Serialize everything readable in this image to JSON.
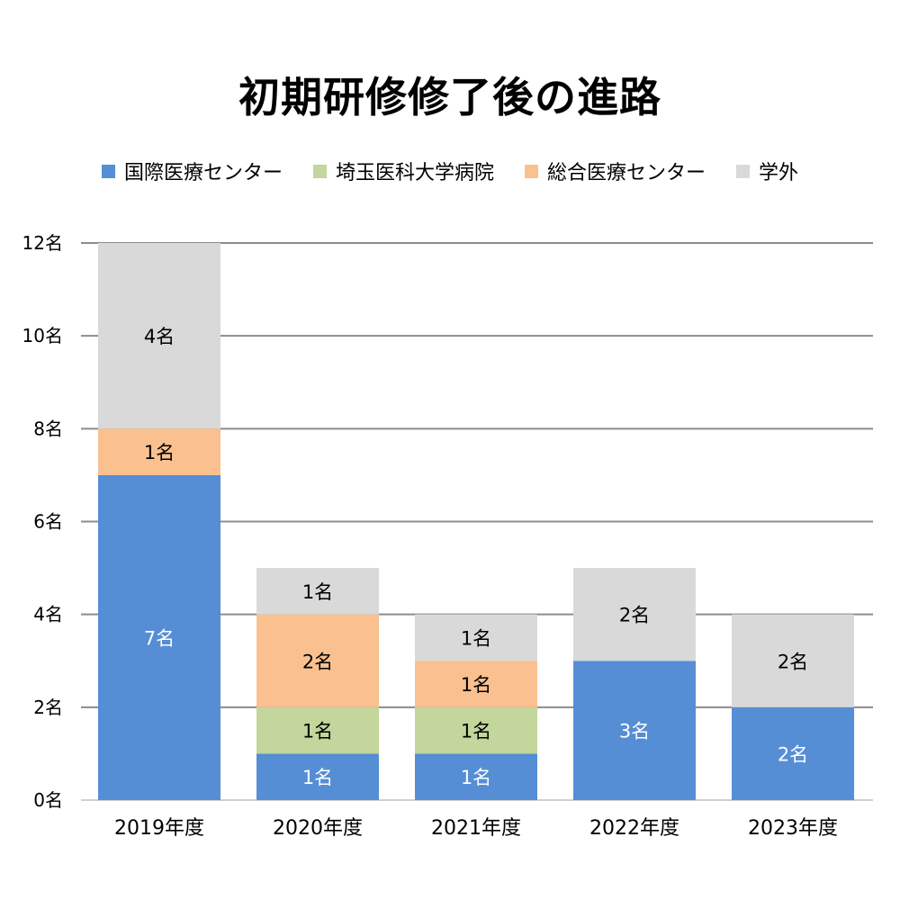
{
  "chart_data": {
    "type": "bar",
    "stacked": true,
    "title": "初期研修修了後の進路",
    "categories": [
      "2019年度",
      "2020年度",
      "2021年度",
      "2022年度",
      "2023年度"
    ],
    "series": [
      {
        "name": "国際医療センター",
        "color": "#558ed5",
        "label_color": "#ffffff",
        "values": [
          7,
          1,
          1,
          3,
          2
        ]
      },
      {
        "name": "埼玉医科大学病院",
        "color": "#c3d69b",
        "label_color": "#000000",
        "values": [
          0,
          1,
          1,
          0,
          0
        ]
      },
      {
        "name": "総合医療センター",
        "color": "#fac090",
        "label_color": "#000000",
        "values": [
          1,
          2,
          1,
          0,
          0
        ]
      },
      {
        "name": "学外",
        "color": "#d9d9d9",
        "label_color": "#000000",
        "values": [
          4,
          1,
          1,
          2,
          2
        ]
      }
    ],
    "value_suffix": "名",
    "ylim": [
      0,
      12
    ],
    "yticks": [
      0,
      2,
      4,
      6,
      8,
      10,
      12
    ],
    "grid": true,
    "legend_position": "top",
    "xlabel": "",
    "ylabel": ""
  }
}
